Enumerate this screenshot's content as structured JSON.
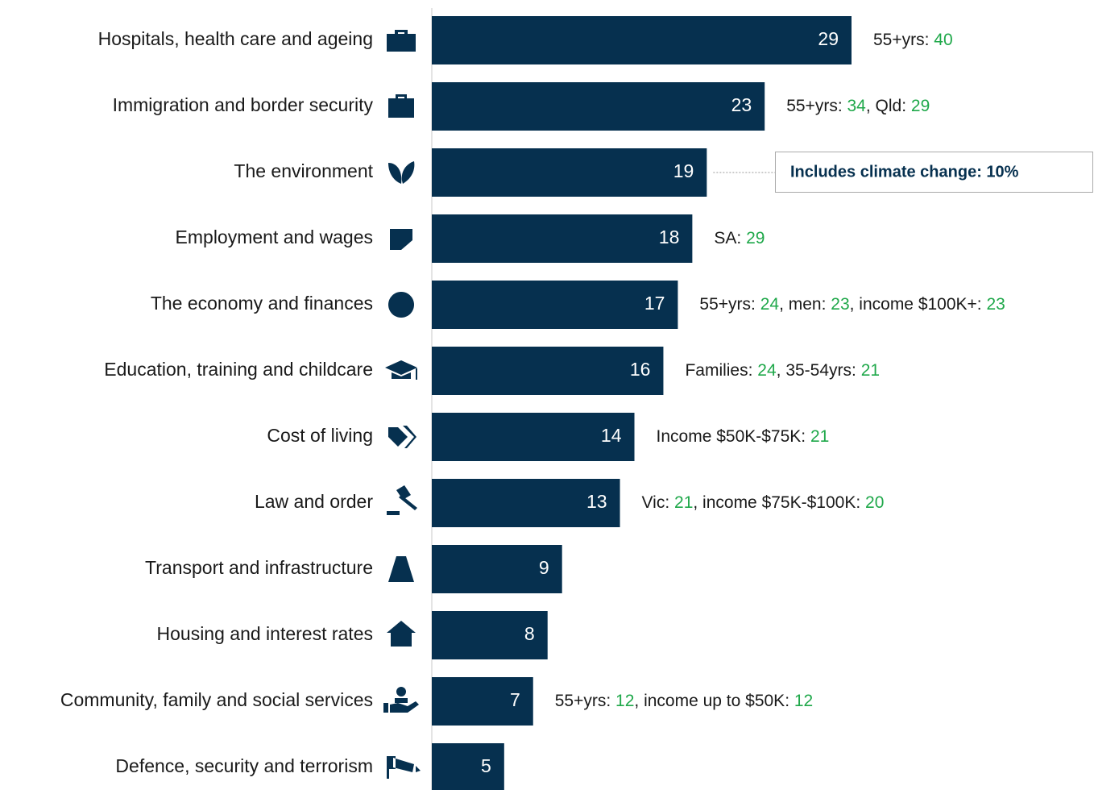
{
  "chart_data": {
    "type": "bar",
    "orientation": "horizontal",
    "color": "#06304f",
    "value_label_color": "#ffffff",
    "note_color": "#1a1a1a",
    "note_value_color": "#1fa84a",
    "categories": [
      "Hospitals, health care and ageing",
      "Immigration and border security",
      "The environment",
      "Employment and wages",
      "The economy and finances",
      "Education, training and childcare",
      "Cost of living",
      "Law and order",
      "Transport and infrastructure",
      "Housing and interest rates",
      "Community, family and social services",
      "Defence, security and terrorism"
    ],
    "values": [
      29,
      23,
      19,
      18,
      17,
      16,
      14,
      13,
      9,
      8,
      7,
      5
    ],
    "notes": [
      [
        {
          "label": "55+yrs: ",
          "value": 40
        }
      ],
      [
        {
          "label": "55+yrs: ",
          "value": 34
        },
        {
          "label": ", Qld: ",
          "value": 29
        }
      ],
      null,
      [
        {
          "label": "SA: ",
          "value": 29
        }
      ],
      [
        {
          "label": "55+yrs: ",
          "value": 24
        },
        {
          "label": ", men: ",
          "value": 23
        },
        {
          "label": ", income $100K+: ",
          "value": 23
        }
      ],
      [
        {
          "label": "Families: ",
          "value": 24
        },
        {
          "label": ", 35-54yrs: ",
          "value": 21
        }
      ],
      [
        {
          "label": "Income $50K-$75K: ",
          "value": 21
        }
      ],
      [
        {
          "label": "Vic: ",
          "value": 21
        },
        {
          "label": ", income $75K-$100K: ",
          "value": 20
        }
      ],
      null,
      null,
      [
        {
          "label": "55+yrs: ",
          "value": 12
        },
        {
          "label": ", income up to $50K: ",
          "value": 12
        }
      ],
      null
    ],
    "annotations": [
      {
        "category": "The environment",
        "text": "Includes climate change: 10%",
        "color": "#06304f"
      }
    ]
  }
}
